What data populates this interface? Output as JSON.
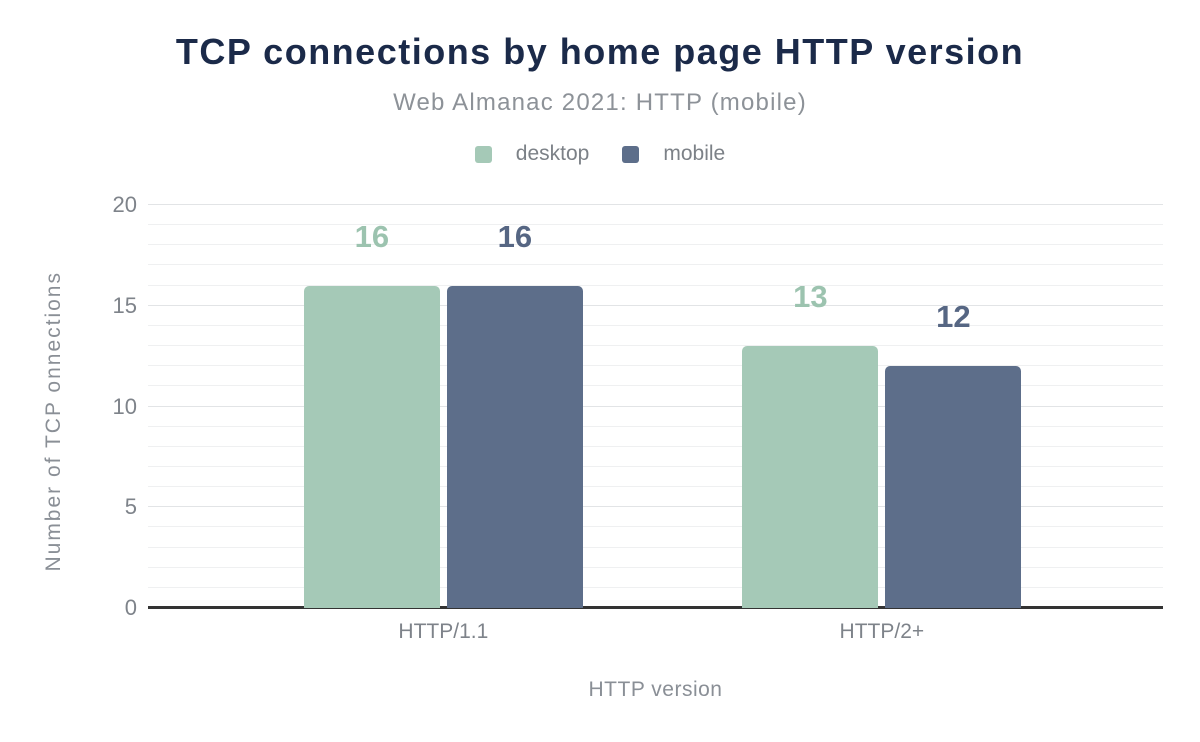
{
  "chart_data": {
    "type": "bar",
    "title": "TCP connections by home page HTTP version",
    "subtitle": "Web Almanac 2021: HTTP (mobile)",
    "categories": [
      "HTTP/1.1",
      "HTTP/2+"
    ],
    "series": [
      {
        "name": "desktop",
        "values": [
          16,
          13
        ],
        "color": "#a5c9b7",
        "label_color": "#9cc3af"
      },
      {
        "name": "mobile",
        "values": [
          16,
          12
        ],
        "color": "#5d6e8a",
        "label_color": "#566683"
      }
    ],
    "xlabel": "HTTP version",
    "ylabel": "Number of TCP onnections",
    "ylim": [
      0,
      20
    ],
    "y_major_ticks": [
      0,
      5,
      10,
      15,
      20
    ],
    "y_minor_step": 1,
    "grid": true,
    "value_labels": true,
    "legend_position": "top",
    "colors": {
      "title": "#1b2a49",
      "subtitle": "#8d9298",
      "tick_label": "#7e838a",
      "axis_title": "#8a8f96",
      "grid_major": "#e2e4e6",
      "grid_minor": "#eff0f1",
      "axis_line": "#333333",
      "background": "#ffffff"
    }
  }
}
